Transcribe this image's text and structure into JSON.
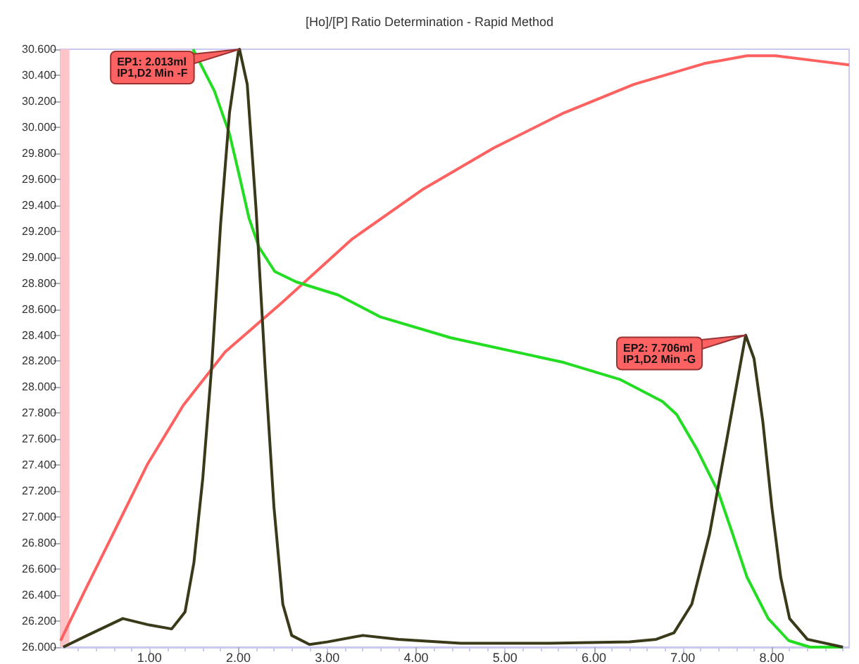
{
  "chart_data": {
    "type": "line",
    "title": "[Ho]/[P] Ratio Determination - Rapid Method",
    "xlim": [
      0,
      8.87
    ],
    "xticks": [
      {
        "value": 1,
        "label": "1.00"
      },
      {
        "value": 2,
        "label": "2.00"
      },
      {
        "value": 3,
        "label": "3.00"
      },
      {
        "value": 4,
        "label": "4.00"
      },
      {
        "value": 5,
        "label": "5.00"
      },
      {
        "value": 6,
        "label": "6.00"
      },
      {
        "value": 7,
        "label": "7.00"
      },
      {
        "value": 8,
        "label": "8.00"
      }
    ],
    "ylim": [
      26,
      30.6
    ],
    "yticks": [
      {
        "value": 26,
        "label": "26.000"
      },
      {
        "value": 26.2,
        "label": "26.200"
      },
      {
        "value": 26.4,
        "label": "26.400"
      },
      {
        "value": 26.6,
        "label": "26.600"
      },
      {
        "value": 26.8,
        "label": "26.800"
      },
      {
        "value": 27,
        "label": "27.000"
      },
      {
        "value": 27.2,
        "label": "27.200"
      },
      {
        "value": 27.4,
        "label": "27.400"
      },
      {
        "value": 27.6,
        "label": "27.600"
      },
      {
        "value": 27.8,
        "label": "27.800"
      },
      {
        "value": 28,
        "label": "28.000"
      },
      {
        "value": 28.2,
        "label": "28.200"
      },
      {
        "value": 28.4,
        "label": "28.400"
      },
      {
        "value": 28.6,
        "label": "28.600"
      },
      {
        "value": 28.8,
        "label": "28.800"
      },
      {
        "value": 29,
        "label": "29.000"
      },
      {
        "value": 29.2,
        "label": "29.200"
      },
      {
        "value": 29.4,
        "label": "29.400"
      },
      {
        "value": 29.6,
        "label": "29.600"
      },
      {
        "value": 29.8,
        "label": "29.800"
      },
      {
        "value": 30,
        "label": "30.000"
      },
      {
        "value": 30.2,
        "label": "30.200"
      },
      {
        "value": 30.4,
        "label": "30.400"
      },
      {
        "value": 30.6,
        "label": "30.600"
      }
    ],
    "grid": false,
    "marker": "none",
    "line_style": "solid",
    "bands": [
      {
        "axis": "x",
        "from": 0,
        "to": 0.1,
        "color": "#ffc4c8"
      }
    ],
    "series": [
      {
        "color": "#ff6060",
        "x": [
          0,
          0.27,
          0.59,
          0.98,
          1.38,
          1.85,
          2.49,
          3.28,
          4.07,
          4.87,
          5.66,
          6.45,
          7.24,
          7.72,
          8.04,
          8.51,
          8.87
        ],
        "values": [
          26.05,
          26.43,
          26.87,
          27.41,
          27.86,
          28.27,
          28.65,
          29.14,
          29.52,
          29.84,
          30.11,
          30.33,
          30.49,
          30.55,
          30.55,
          30.51,
          30.48
        ]
      },
      {
        "color": "#22dd22",
        "x": [
          1.49,
          1.73,
          1.9,
          2.01,
          2.12,
          2.23,
          2.41,
          2.65,
          3.12,
          3.6,
          4.39,
          5.66,
          6.29,
          6.77,
          6.93,
          7.16,
          7.4,
          7.56,
          7.72,
          7.96,
          8.19,
          8.43,
          8.8
        ],
        "values": [
          30.6,
          30.28,
          29.95,
          29.63,
          29.3,
          29.08,
          28.89,
          28.81,
          28.71,
          28.54,
          28.38,
          28.19,
          28.06,
          27.89,
          27.79,
          27.52,
          27.19,
          26.87,
          26.54,
          26.22,
          26.05,
          26.0,
          26.0
        ]
      },
      {
        "color": "#3a3a1a",
        "x": [
          0.03,
          0.3,
          0.7,
          1.0,
          1.25,
          1.4,
          1.5,
          1.6,
          1.7,
          1.8,
          1.9,
          2.0,
          2.013,
          2.1,
          2.2,
          2.3,
          2.4,
          2.5,
          2.6,
          2.8,
          3.0,
          3.4,
          3.8,
          4.5,
          5.5,
          6.4,
          6.7,
          6.9,
          7.1,
          7.3,
          7.5,
          7.6,
          7.706,
          7.8,
          7.9,
          8.0,
          8.1,
          8.2,
          8.4,
          8.8
        ],
        "values": [
          26.0,
          26.09,
          26.22,
          26.17,
          26.14,
          26.27,
          26.65,
          27.3,
          28.16,
          29.25,
          30.11,
          30.58,
          30.6,
          30.33,
          29.36,
          28.16,
          27.08,
          26.33,
          26.09,
          26.02,
          26.04,
          26.09,
          26.06,
          26.03,
          26.03,
          26.04,
          26.06,
          26.11,
          26.33,
          26.87,
          27.62,
          28.0,
          28.4,
          28.22,
          27.73,
          27.08,
          26.54,
          26.22,
          26.06,
          26.0
        ]
      }
    ],
    "annotations": [
      {
        "text": "EP1: 2.013ml\nIP1,D2 Min -F",
        "x": 2.013,
        "y": 30.6
      },
      {
        "text": "EP2: 7.706ml\nIP1,D2 Min -G",
        "x": 7.706,
        "y": 28.4
      }
    ]
  }
}
